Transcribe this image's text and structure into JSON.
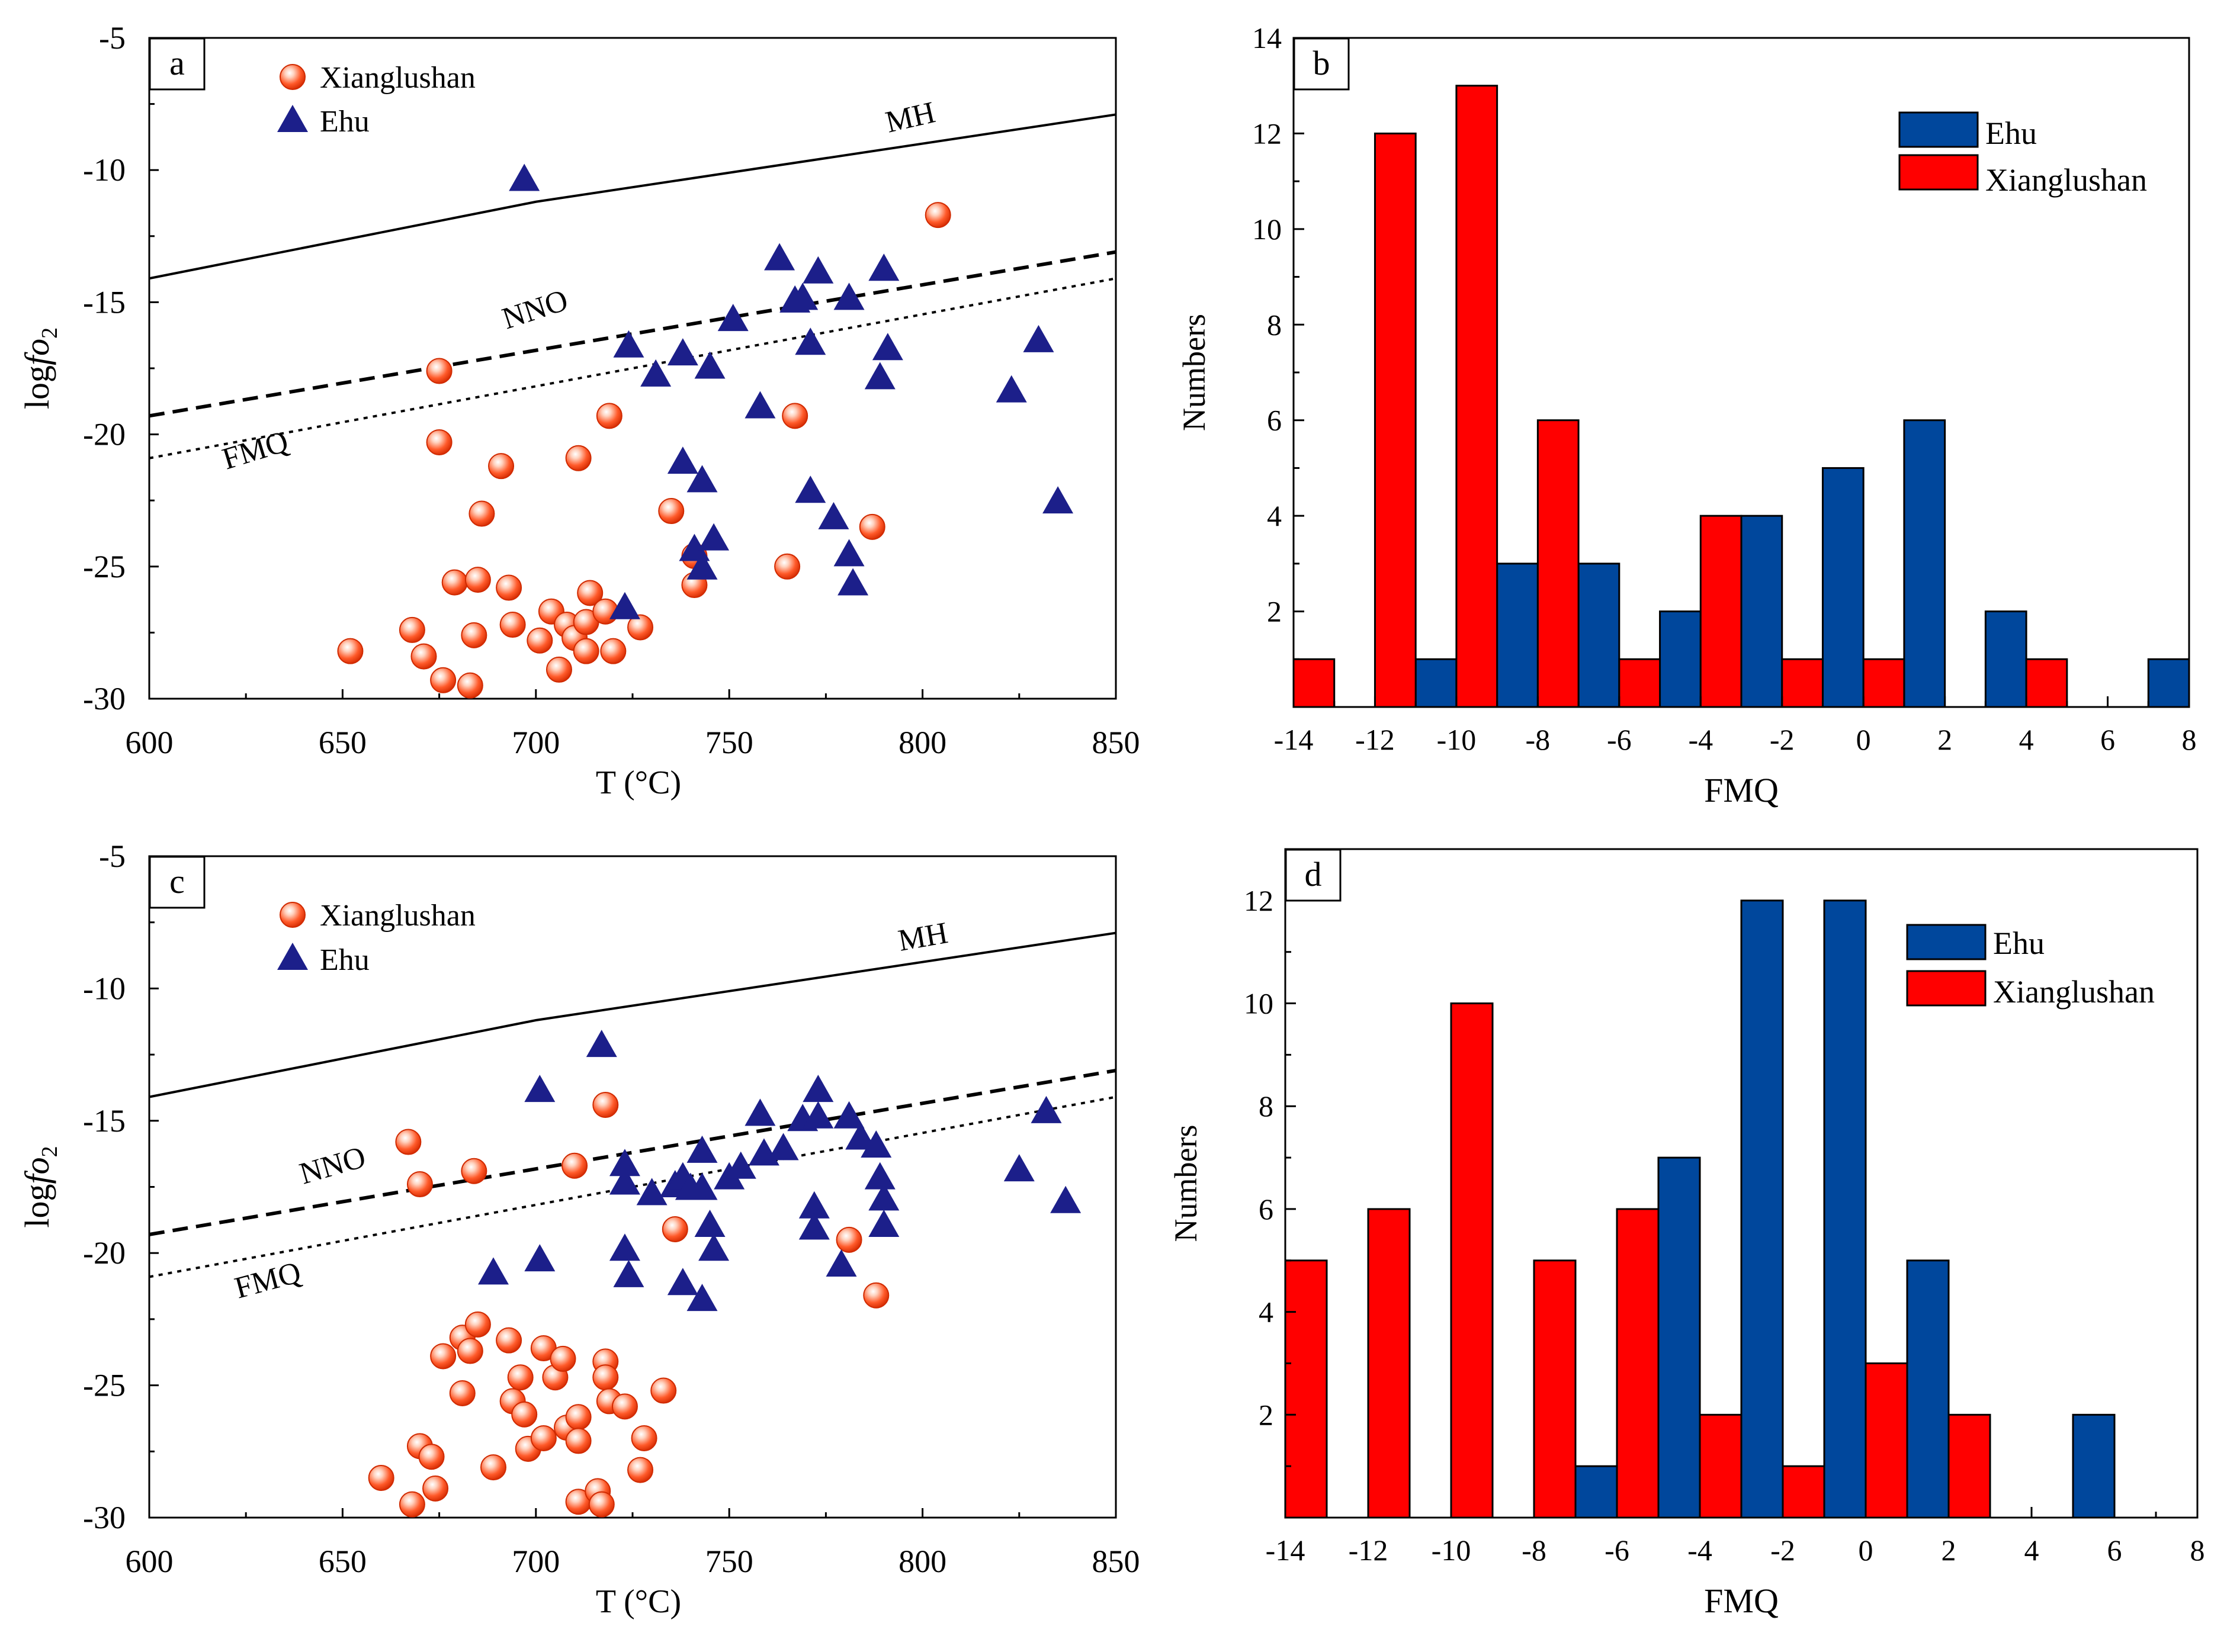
{
  "chart_data": [
    {
      "panel": "a",
      "type": "scatter",
      "xlabel": "T (°C)",
      "ylabel": "logfo2",
      "xlim": [
        600,
        850
      ],
      "ylim": [
        -30,
        -5
      ],
      "xticks": [
        600,
        650,
        700,
        750,
        800,
        850
      ],
      "yticks": [
        -5,
        -10,
        -15,
        -20,
        -25,
        -30
      ],
      "buffers": [
        {
          "name": "MH",
          "style": "solid",
          "points": [
            [
              600,
              -14.1
            ],
            [
              700,
              -11.2
            ],
            [
              850,
              -7.9
            ]
          ]
        },
        {
          "name": "NNO",
          "style": "dashed",
          "points": [
            [
              600,
              -19.3
            ],
            [
              850,
              -13.1
            ]
          ]
        },
        {
          "name": "FMQ",
          "style": "dotted",
          "points": [
            [
              600,
              -20.9
            ],
            [
              850,
              -14.1
            ]
          ]
        }
      ],
      "series": [
        {
          "name": "Xianglushan",
          "marker": "circle",
          "points": [
            [
              652,
              -28.2
            ],
            [
              668,
              -27.4
            ],
            [
              671,
              -28.4
            ],
            [
              675,
              -17.6
            ],
            [
              675,
              -20.3
            ],
            [
              676,
              -29.3
            ],
            [
              679,
              -25.6
            ],
            [
              683,
              -29.5
            ],
            [
              684,
              -27.6
            ],
            [
              685,
              -25.5
            ],
            [
              686,
              -23.0
            ],
            [
              691,
              -21.2
            ],
            [
              693,
              -25.8
            ],
            [
              694,
              -27.2
            ],
            [
              701,
              -27.8
            ],
            [
              704,
              -26.7
            ],
            [
              706,
              -28.9
            ],
            [
              708,
              -27.2
            ],
            [
              710,
              -27.7
            ],
            [
              711,
              -20.9
            ],
            [
              713,
              -28.2
            ],
            [
              713,
              -27.1
            ],
            [
              714,
              -26.0
            ],
            [
              718,
              -26.7
            ],
            [
              719,
              -19.3
            ],
            [
              720,
              -28.2
            ],
            [
              727,
              -27.3
            ],
            [
              735,
              -22.9
            ],
            [
              741,
              -24.6
            ],
            [
              741,
              -25.7
            ],
            [
              765,
              -25.0
            ],
            [
              767,
              -19.3
            ],
            [
              787,
              -23.5
            ],
            [
              804,
              -11.7
            ]
          ]
        },
        {
          "name": "Ehu",
          "marker": "triangle",
          "points": [
            [
              697,
              -10.4
            ],
            [
              723,
              -26.6
            ],
            [
              724,
              -16.7
            ],
            [
              731,
              -17.8
            ],
            [
              738,
              -17.0
            ],
            [
              738,
              -21.1
            ],
            [
              741,
              -24.4
            ],
            [
              743,
              -21.8
            ],
            [
              743,
              -25.1
            ],
            [
              745,
              -17.5
            ],
            [
              746,
              -24.0
            ],
            [
              751,
              -15.7
            ],
            [
              758,
              -19.0
            ],
            [
              763,
              -13.4
            ],
            [
              767,
              -15.0
            ],
            [
              769,
              -14.9
            ],
            [
              771,
              -16.6
            ],
            [
              771,
              -22.2
            ],
            [
              773,
              -13.9
            ],
            [
              777,
              -23.2
            ],
            [
              781,
              -14.9
            ],
            [
              781,
              -24.6
            ],
            [
              782,
              -25.7
            ],
            [
              789,
              -17.9
            ],
            [
              790,
              -13.8
            ],
            [
              791,
              -16.8
            ],
            [
              823,
              -18.4
            ],
            [
              830,
              -16.5
            ],
            [
              835,
              -22.6
            ]
          ]
        }
      ]
    },
    {
      "panel": "b",
      "type": "bar",
      "xlabel": "FMQ",
      "ylabel": "Numbers",
      "xlim": [
        -14,
        8
      ],
      "ylim": [
        0,
        14
      ],
      "xticks": [
        "-14",
        "-12",
        "-10",
        "-8",
        "-6",
        "-4",
        "-2",
        "0",
        "2",
        "4",
        "6",
        "8"
      ],
      "yticks": [
        "2",
        "4",
        "6",
        "8",
        "10",
        "12",
        "14"
      ],
      "bin_width": 2,
      "series": [
        {
          "name": "Ehu",
          "color": "#00479c",
          "bins": [
            {
              "start": -10,
              "count": 1
            },
            {
              "start": -8,
              "count": 3
            },
            {
              "start": -6,
              "count": 3
            },
            {
              "start": -4,
              "count": 2
            },
            {
              "start": -2,
              "count": 4
            },
            {
              "start": 0,
              "count": 5
            },
            {
              "start": 2,
              "count": 6
            },
            {
              "start": 4,
              "count": 2
            },
            {
              "start": 8,
              "count": 1
            }
          ]
        },
        {
          "name": "Xianglushan",
          "color": "#ff0000",
          "bins": [
            {
              "start": -14,
              "count": 1
            },
            {
              "start": -12,
              "count": 12
            },
            {
              "start": -10,
              "count": 13
            },
            {
              "start": -8,
              "count": 6
            },
            {
              "start": -6,
              "count": 1
            },
            {
              "start": -4,
              "count": 4
            },
            {
              "start": -2,
              "count": 1
            },
            {
              "start": 0,
              "count": 1
            },
            {
              "start": 4,
              "count": 1
            }
          ]
        }
      ]
    },
    {
      "panel": "c",
      "type": "scatter",
      "xlabel": "T (°C)",
      "ylabel": "logfo2",
      "xlim": [
        600,
        850
      ],
      "ylim": [
        -30,
        -5
      ],
      "xticks": [
        600,
        650,
        700,
        750,
        800,
        850
      ],
      "yticks": [
        -5,
        -10,
        -15,
        -20,
        -25,
        -30
      ],
      "buffers": [
        {
          "name": "MH",
          "style": "solid",
          "points": [
            [
              600,
              -14.1
            ],
            [
              700,
              -11.2
            ],
            [
              850,
              -7.9
            ]
          ]
        },
        {
          "name": "NNO",
          "style": "dashed",
          "points": [
            [
              600,
              -19.3
            ],
            [
              850,
              -13.1
            ]
          ]
        },
        {
          "name": "FMQ",
          "style": "dotted",
          "points": [
            [
              600,
              -20.9
            ],
            [
              850,
              -14.1
            ]
          ]
        }
      ],
      "series": [
        {
          "name": "Xianglushan",
          "marker": "circle",
          "points": [
            [
              660,
              -28.5
            ],
            [
              667,
              -15.8
            ],
            [
              668,
              -29.5
            ],
            [
              670,
              -27.3
            ],
            [
              670,
              -17.4
            ],
            [
              673,
              -27.7
            ],
            [
              674,
              -28.9
            ],
            [
              676,
              -23.9
            ],
            [
              681,
              -23.2
            ],
            [
              681,
              -25.3
            ],
            [
              683,
              -23.7
            ],
            [
              684,
              -16.9
            ],
            [
              685,
              -22.7
            ],
            [
              689,
              -28.1
            ],
            [
              693,
              -23.3
            ],
            [
              694,
              -25.6
            ],
            [
              696,
              -24.7
            ],
            [
              697,
              -26.1
            ],
            [
              698,
              -27.4
            ],
            [
              702,
              -23.6
            ],
            [
              702,
              -27.0
            ],
            [
              705,
              -24.7
            ],
            [
              707,
              -24.0
            ],
            [
              708,
              -26.6
            ],
            [
              710,
              -16.7
            ],
            [
              711,
              -26.2
            ],
            [
              711,
              -27.1
            ],
            [
              711,
              -29.4
            ],
            [
              716,
              -29.0
            ],
            [
              717,
              -29.5
            ],
            [
              718,
              -24.1
            ],
            [
              718,
              -14.4
            ],
            [
              718,
              -24.7
            ],
            [
              719,
              -25.6
            ],
            [
              723,
              -25.8
            ],
            [
              727,
              -28.2
            ],
            [
              728,
              -27.0
            ],
            [
              733,
              -25.2
            ],
            [
              736,
              -19.1
            ],
            [
              781,
              -19.5
            ],
            [
              788,
              -21.6
            ]
          ]
        },
        {
          "name": "Ehu",
          "marker": "triangle",
          "points": [
            [
              689,
              -20.8
            ],
            [
              701,
              -13.9
            ],
            [
              701,
              -20.3
            ],
            [
              717,
              -12.2
            ],
            [
              723,
              -16.7
            ],
            [
              723,
              -17.4
            ],
            [
              723,
              -19.9
            ],
            [
              724,
              -20.9
            ],
            [
              730,
              -17.8
            ],
            [
              736,
              -17.5
            ],
            [
              738,
              -17.2
            ],
            [
              738,
              -21.2
            ],
            [
              740,
              -17.6
            ],
            [
              743,
              -16.2
            ],
            [
              743,
              -17.6
            ],
            [
              743,
              -21.8
            ],
            [
              745,
              -19.0
            ],
            [
              746,
              -19.9
            ],
            [
              750,
              -17.2
            ],
            [
              753,
              -16.8
            ],
            [
              758,
              -14.8
            ],
            [
              759,
              -16.3
            ],
            [
              764,
              -16.1
            ],
            [
              769,
              -15.0
            ],
            [
              772,
              -18.3
            ],
            [
              772,
              -19.1
            ],
            [
              773,
              -13.9
            ],
            [
              773,
              -14.9
            ],
            [
              779,
              -20.5
            ],
            [
              781,
              -14.9
            ],
            [
              784,
              -15.7
            ],
            [
              788,
              -16.0
            ],
            [
              789,
              -17.2
            ],
            [
              790,
              -18.0
            ],
            [
              790,
              -19.0
            ],
            [
              825,
              -16.9
            ],
            [
              832,
              -14.7
            ],
            [
              837,
              -18.1
            ]
          ]
        }
      ]
    },
    {
      "panel": "d",
      "type": "bar",
      "xlabel": "FMQ",
      "ylabel": "Numbers",
      "xlim": [
        -14,
        8
      ],
      "ylim": [
        0,
        13
      ],
      "xticks": [
        "-14",
        "-12",
        "-10",
        "-8",
        "-6",
        "-4",
        "-2",
        "0",
        "2",
        "4",
        "6",
        "8"
      ],
      "yticks": [
        "2",
        "4",
        "6",
        "8",
        "10",
        "12"
      ],
      "bin_width": 2,
      "series": [
        {
          "name": "Ehu",
          "color": "#00479c",
          "bins": [
            {
              "start": -6,
              "count": 1
            },
            {
              "start": -4,
              "count": 7
            },
            {
              "start": -2,
              "count": 12
            },
            {
              "start": 0,
              "count": 12
            },
            {
              "start": 2,
              "count": 5
            },
            {
              "start": 6,
              "count": 2
            }
          ]
        },
        {
          "name": "Xianglushan",
          "color": "#ff0000",
          "bins": [
            {
              "start": -14,
              "count": 5
            },
            {
              "start": -12,
              "count": 6
            },
            {
              "start": -10,
              "count": 10
            },
            {
              "start": -8,
              "count": 5
            },
            {
              "start": -6,
              "count": 6
            },
            {
              "start": -4,
              "count": 2
            },
            {
              "start": -2,
              "count": 1
            },
            {
              "start": 0,
              "count": 3
            },
            {
              "start": 2,
              "count": 2
            }
          ]
        }
      ]
    }
  ]
}
